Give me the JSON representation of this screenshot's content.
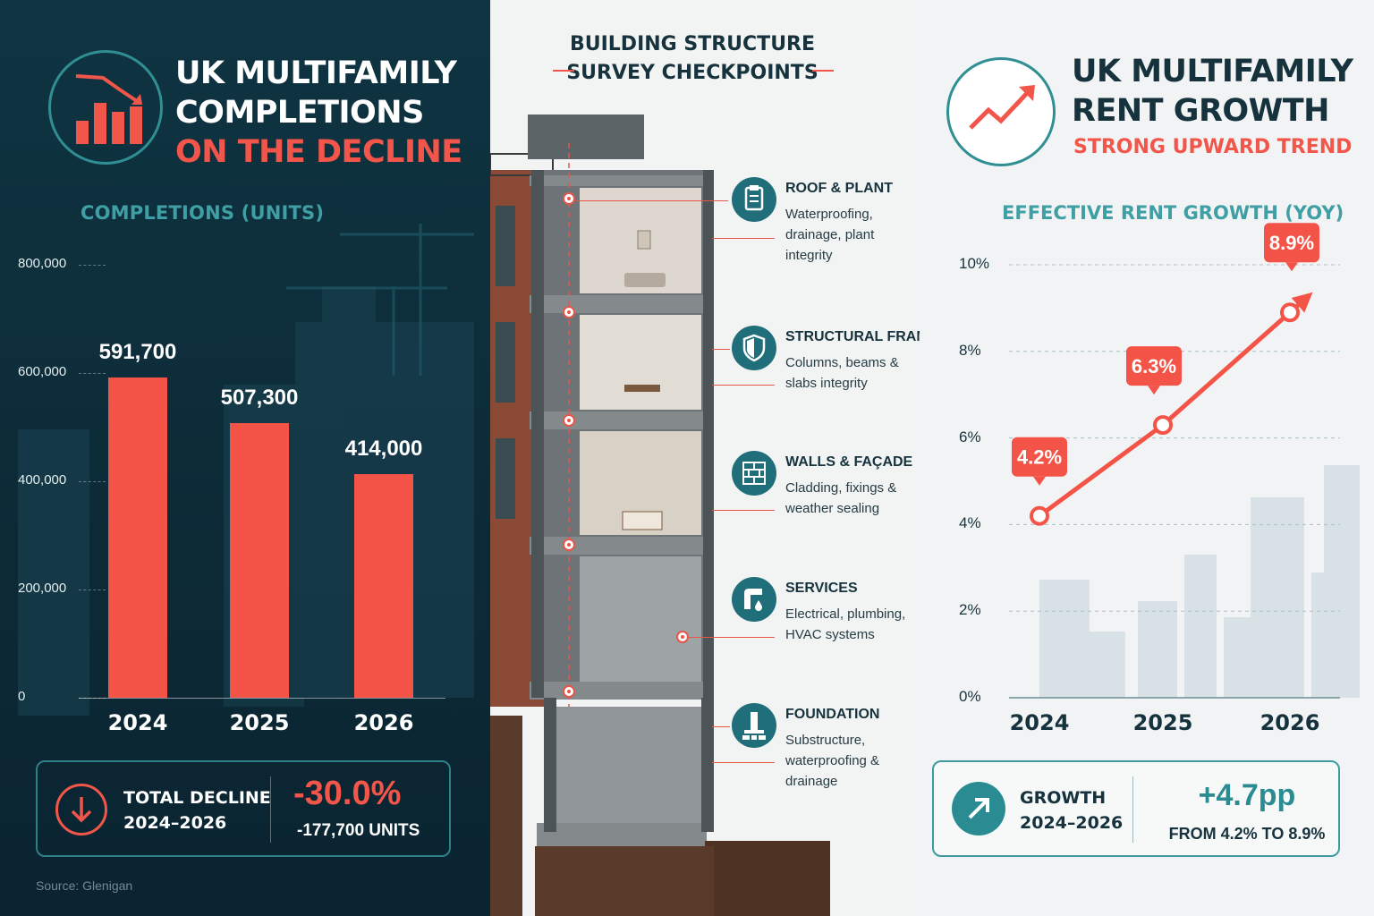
{
  "left": {
    "title_line1": "UK MULTIFAMILY",
    "title_line2": "COMPLETIONS",
    "title_line3": "ON THE DECLINE",
    "chart_title": "COMPLETIONS (UNITS)",
    "summary": {
      "label_line1": "TOTAL DECLINE",
      "label_line2": "2024–2026",
      "big": "-30.0%",
      "small": "-177,700 UNITS"
    },
    "source": "Source: Glenigan"
  },
  "middle": {
    "title_line1": "BUILDING STRUCTURE",
    "title_line2": "SURVEY CHECKPOINTS",
    "checkpoints": [
      {
        "title": "ROOF & PLANT",
        "desc": "Waterproofing, drainage, plant integrity",
        "icon": "clipboard-icon"
      },
      {
        "title": "STRUCTURAL FRAME",
        "desc": "Columns, beams & slabs integrity",
        "icon": "shield-icon"
      },
      {
        "title": "WALLS & FAÇADE",
        "desc": "Cladding, fixings & weather sealing",
        "icon": "brick-wall-icon"
      },
      {
        "title": "SERVICES",
        "desc": "Electrical, plumbing, HVAC systems",
        "icon": "pipe-drop-icon"
      },
      {
        "title": "FOUNDATION",
        "desc": "Substructure, waterproofing & drainage",
        "icon": "foundation-icon"
      }
    ]
  },
  "right": {
    "title_line1": "UK MULTIFAMILY",
    "title_line2": "RENT GROWTH",
    "subtitle": "STRONG UPWARD TREND",
    "chart_title": "EFFECTIVE RENT GROWTH (YOY)",
    "summary": {
      "label_line1": "GROWTH",
      "label_line2": "2024–2026",
      "big": "+4.7pp",
      "small": "FROM 4.2% TO 8.9%"
    }
  },
  "colors": {
    "accent_red": "#f45447",
    "teal": "#2a8b92",
    "navy": "#0f3442"
  },
  "chart_data": [
    {
      "type": "bar",
      "title": "COMPLETIONS (UNITS)",
      "categories": [
        "2024",
        "2025",
        "2026"
      ],
      "values": [
        591700,
        507300,
        414000
      ],
      "value_labels": [
        "591,700",
        "507,300",
        "414,000"
      ],
      "ylim": [
        0,
        800000
      ],
      "yticks": [
        0,
        200000,
        400000,
        600000,
        800000
      ],
      "ytick_labels": [
        "0",
        "200,000",
        "400,000",
        "600,000",
        "800,000"
      ],
      "xlabel": "",
      "ylabel": ""
    },
    {
      "type": "line",
      "title": "EFFECTIVE RENT GROWTH (YOY)",
      "categories": [
        "2024",
        "2025",
        "2026"
      ],
      "values": [
        4.2,
        6.3,
        8.9
      ],
      "value_labels": [
        "4.2%",
        "6.3%",
        "8.9%"
      ],
      "ylim": [
        0,
        10
      ],
      "yticks": [
        0,
        2,
        4,
        6,
        8,
        10
      ],
      "ytick_labels": [
        "0%",
        "2%",
        "4%",
        "6%",
        "8%",
        "10%"
      ],
      "grid": true,
      "xlabel": "",
      "ylabel": ""
    }
  ]
}
